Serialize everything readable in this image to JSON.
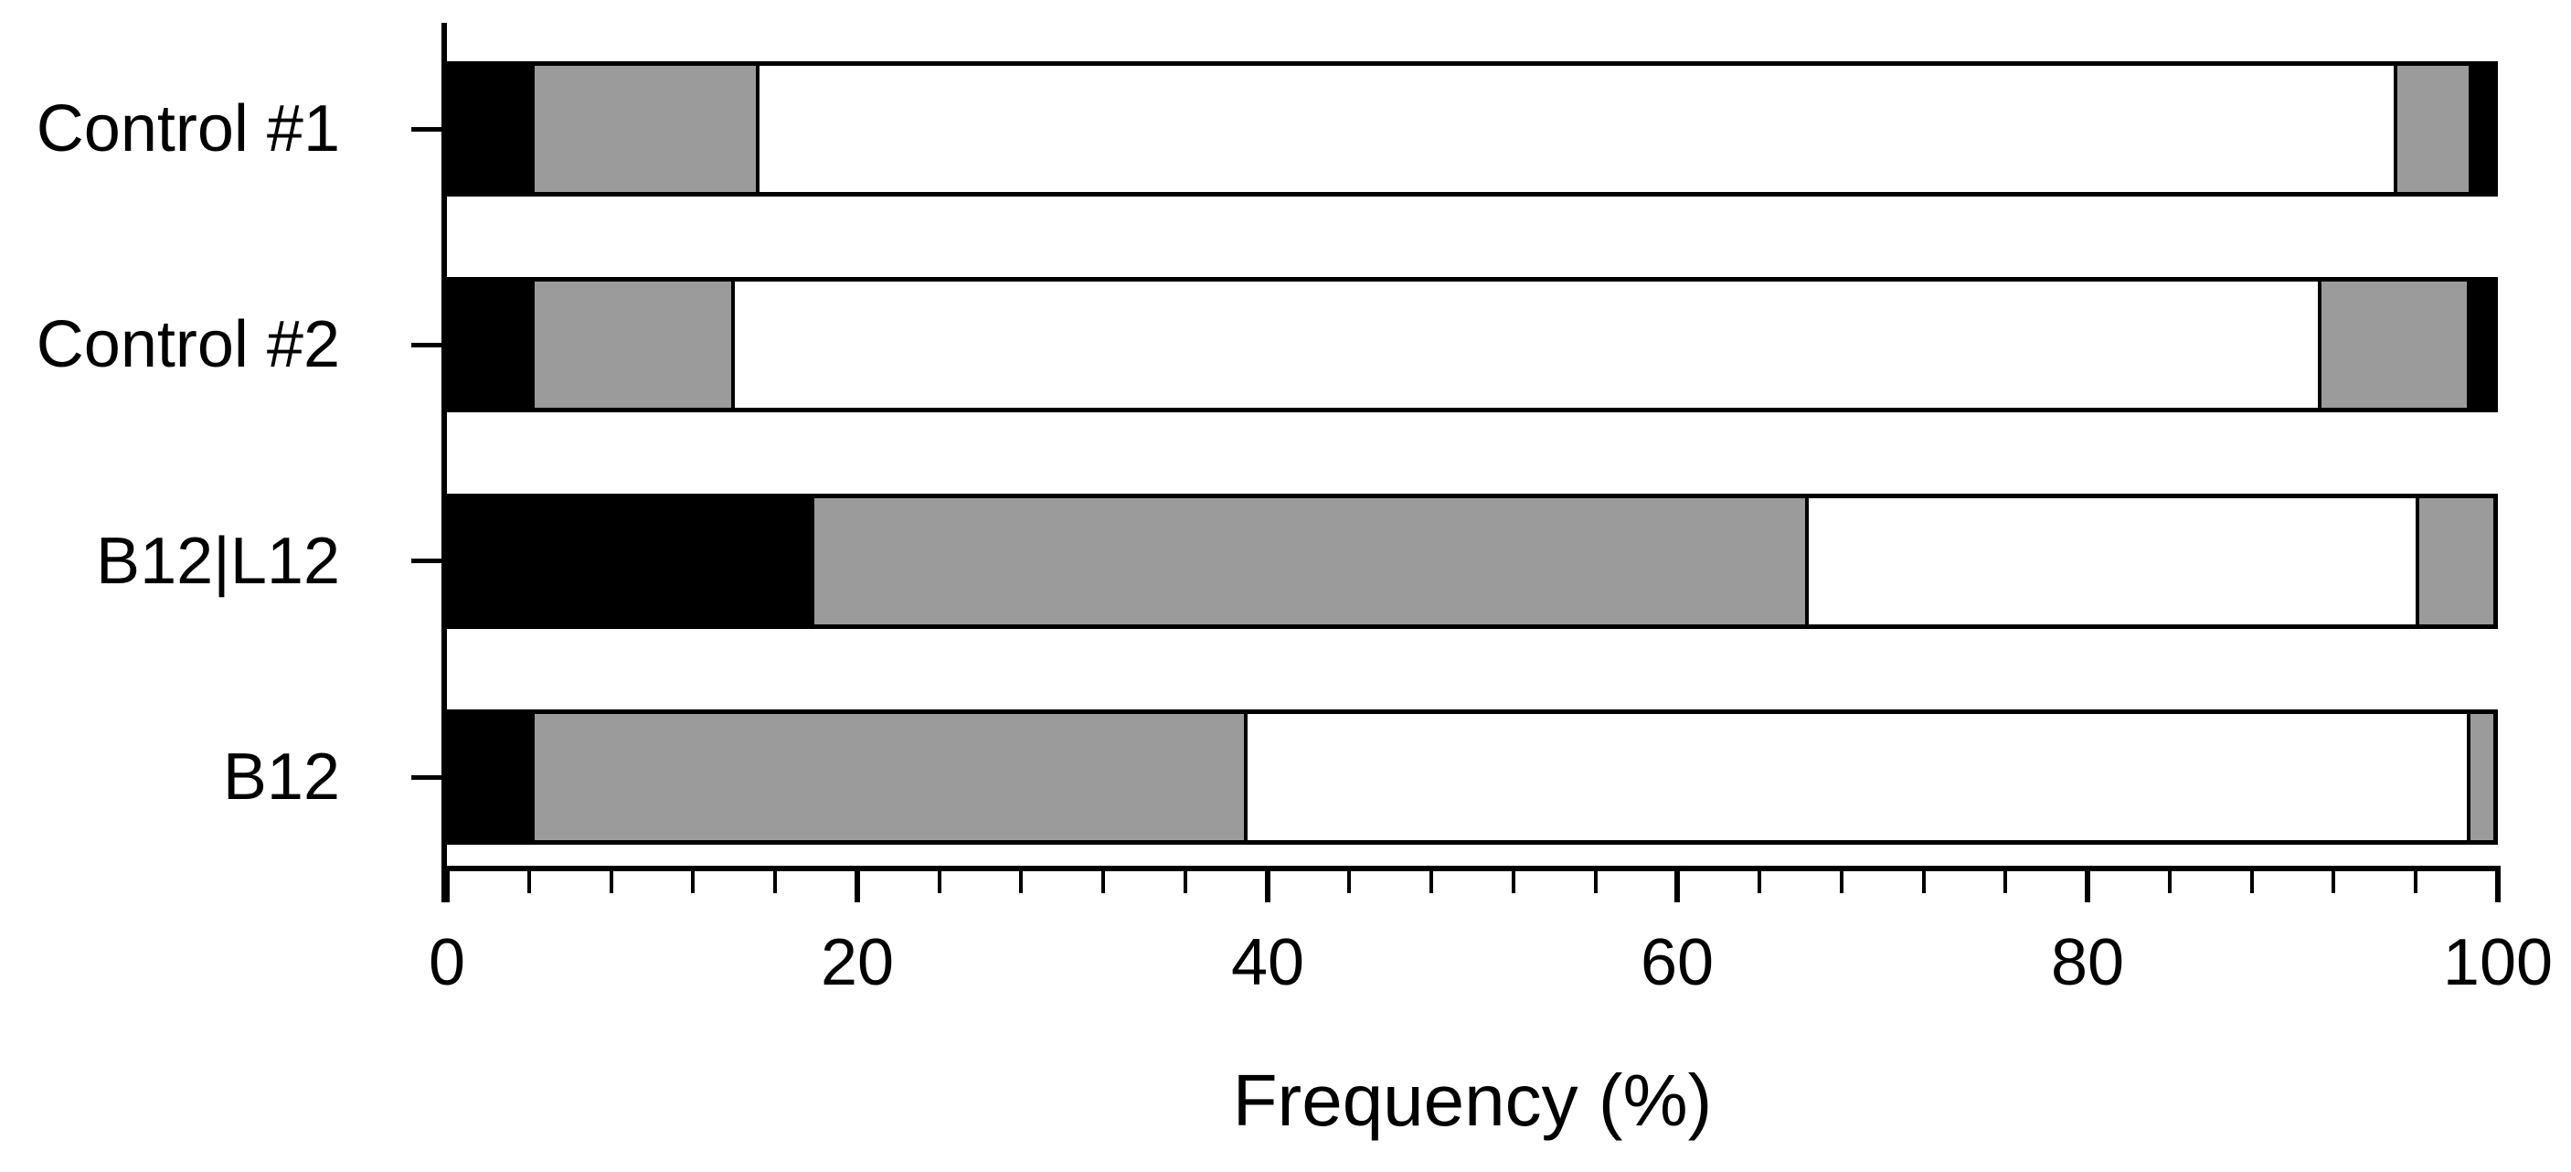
{
  "chart_data": {
    "type": "bar",
    "orientation": "horizontal",
    "stacked": true,
    "title": "",
    "xlabel": "Frequency (%)",
    "ylabel": "",
    "xlim": [
      0,
      100
    ],
    "x_major_ticks": [
      0,
      20,
      40,
      60,
      80,
      100
    ],
    "x_minor_tick_step": 4,
    "grid": false,
    "legend": false,
    "categories": [
      "Control #1",
      "Control #2",
      "B12|L12",
      "B12"
    ],
    "series": [
      {
        "name": "black-left",
        "color": "#000000",
        "values": [
          3.9,
          3.9,
          17.6,
          3.9
        ]
      },
      {
        "name": "gray-left",
        "color": "#9b9b9b",
        "values": [
          11.0,
          9.8,
          48.7,
          34.9
        ]
      },
      {
        "name": "white-mid",
        "color": "#ffffff",
        "values": [
          80.2,
          77.7,
          29.9,
          59.9
        ]
      },
      {
        "name": "gray-right",
        "color": "#9b9b9b",
        "values": [
          3.7,
          7.3,
          3.8,
          1.3
        ]
      },
      {
        "name": "black-right",
        "color": "#000000",
        "values": [
          1.2,
          1.3,
          0,
          0
        ]
      }
    ]
  },
  "colors": {
    "axis": "#000000",
    "bar_outline": "#000000",
    "background": "#ffffff",
    "fill_black": "#000000",
    "fill_gray": "#9b9b9b",
    "fill_white": "#ffffff"
  }
}
